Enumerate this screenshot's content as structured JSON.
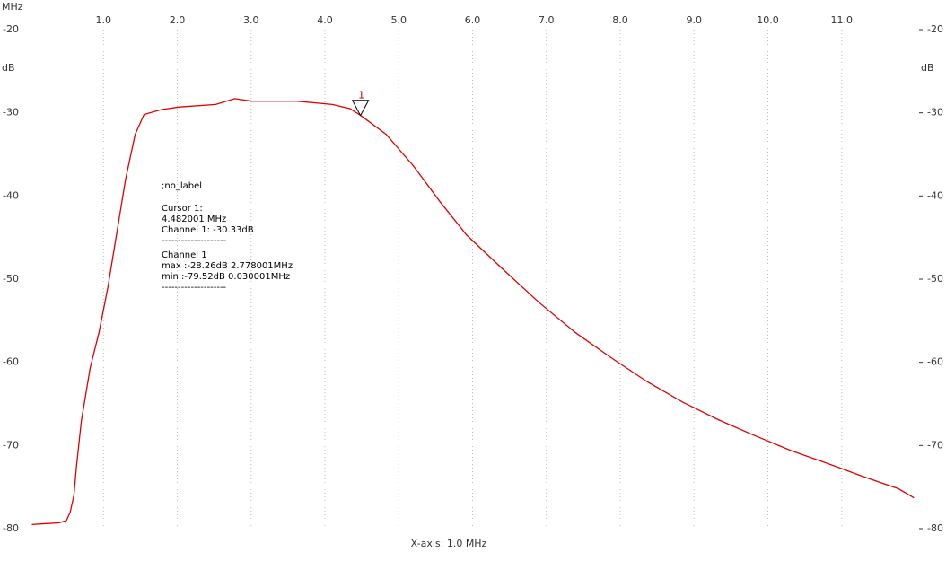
{
  "chart_data": {
    "type": "line",
    "x_unit": "MHz",
    "y_unit": "dB",
    "xlabel": "X-axis: 1.0 MHz",
    "xlim": [
      0,
      12
    ],
    "ylim": [
      -80,
      -20
    ],
    "xticks": [
      {
        "value": 1,
        "label": "1.0"
      },
      {
        "value": 2,
        "label": "2.0"
      },
      {
        "value": 3,
        "label": "3.0"
      },
      {
        "value": 4,
        "label": "4.0"
      },
      {
        "value": 5,
        "label": "5.0"
      },
      {
        "value": 6,
        "label": "6.0"
      },
      {
        "value": 7,
        "label": "7.0"
      },
      {
        "value": 8,
        "label": "8.0"
      },
      {
        "value": 9,
        "label": "9.0"
      },
      {
        "value": 10,
        "label": "10.0"
      },
      {
        "value": 11,
        "label": "11.0"
      }
    ],
    "yticks": [
      -20,
      -30,
      -40,
      -50,
      -60,
      -70,
      -80
    ],
    "grid": true,
    "series": [
      {
        "name": "Channel 1",
        "color": "#e00000",
        "x": [
          0.03,
          0.2,
          0.4,
          0.5,
          0.55,
          0.6,
          0.635,
          0.7,
          0.82,
          0.94,
          1.06,
          1.18,
          1.3,
          1.43,
          1.55,
          1.79,
          2.03,
          2.52,
          2.78,
          3.01,
          3.62,
          4.1,
          4.34,
          4.482,
          4.83,
          5.2,
          5.56,
          5.92,
          6.41,
          6.9,
          7.39,
          7.87,
          8.36,
          8.85,
          9.33,
          9.82,
          10.31,
          10.79,
          11.28,
          11.77,
          11.98
        ],
        "values": [
          -79.5,
          -79.4,
          -79.3,
          -79.0,
          -78.0,
          -76.0,
          -72.5,
          -67.1,
          -60.7,
          -56.4,
          -51.0,
          -44.5,
          -38.0,
          -32.6,
          -30.2,
          -29.6,
          -29.3,
          -29.0,
          -28.3,
          -28.6,
          -28.6,
          -29.0,
          -29.5,
          -30.3,
          -32.6,
          -36.4,
          -40.7,
          -44.7,
          -48.8,
          -52.8,
          -56.4,
          -59.4,
          -62.3,
          -64.8,
          -66.9,
          -68.8,
          -70.6,
          -72.1,
          -73.7,
          -75.2,
          -76.3
        ]
      }
    ],
    "cursor": {
      "label": "1",
      "x": 4.482001,
      "y": -30.33
    },
    "annotations": [
      ";no_label",
      "Cursor 1:",
      "4.482001 MHz",
      "Channel 1: -30.33dB",
      "--------------------",
      "Channel 1",
      "max :-28.26dB 2.778001MHz",
      "min :-79.52dB 0.030001MHz",
      "--------------------"
    ]
  }
}
